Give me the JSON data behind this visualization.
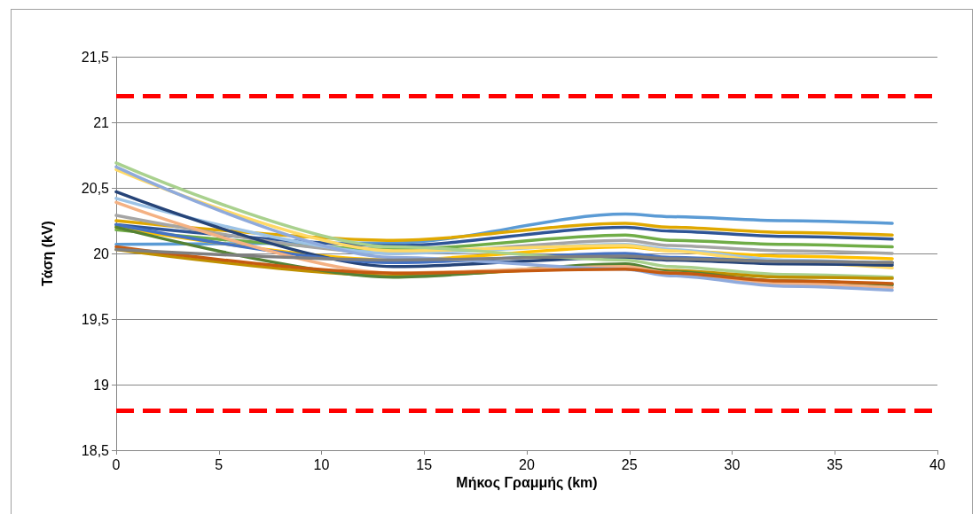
{
  "chart_data": {
    "type": "line",
    "xlabel": "Μήκος Γραμμής (km)",
    "ylabel": "Τάση (kV)",
    "xlim": [
      0,
      40
    ],
    "xticks": [
      0,
      5,
      10,
      15,
      20,
      25,
      30,
      35,
      40
    ],
    "ylim": [
      18.5,
      21.5
    ],
    "yticks": [
      {
        "value": 18.5,
        "label": "18,5"
      },
      {
        "value": 19,
        "label": "19"
      },
      {
        "value": 19.5,
        "label": "19,5"
      },
      {
        "value": 20,
        "label": "20"
      },
      {
        "value": 20.5,
        "label": "20,5"
      },
      {
        "value": 21,
        "label": "21"
      },
      {
        "value": 21.5,
        "label": "21,5"
      }
    ],
    "grid": "y",
    "marker": "none",
    "line_style": "solid",
    "x": [
      0,
      13.5,
      24.8,
      27,
      32.5,
      37.8
    ],
    "series": [
      {
        "color": "#5b9bd5",
        "values": [
          20.07,
          20.08,
          20.3,
          20.28,
          20.25,
          20.23
        ]
      },
      {
        "color": "#e0a800",
        "values": [
          20.25,
          20.1,
          20.23,
          20.2,
          20.16,
          20.14
        ]
      },
      {
        "color": "#2f5597",
        "values": [
          20.22,
          20.06,
          20.2,
          20.17,
          20.13,
          20.11
        ]
      },
      {
        "color": "#70ad47",
        "values": [
          20.18,
          20.03,
          20.14,
          20.1,
          20.07,
          20.05
        ]
      },
      {
        "color": "#a5a5a5",
        "values": [
          20.29,
          20.0,
          20.1,
          20.06,
          20.02,
          20.0
        ]
      },
      {
        "color": "#ffc000",
        "values": [
          20.2,
          19.95,
          20.05,
          20.02,
          19.98,
          19.96
        ]
      },
      {
        "color": "#9dc3e6",
        "values": [
          20.42,
          20.0,
          20.07,
          20.03,
          19.95,
          19.92
        ]
      },
      {
        "color": "#ffd966",
        "values": [
          20.64,
          20.02,
          20.06,
          20.02,
          19.93,
          19.89
        ]
      },
      {
        "color": "#264478",
        "values": [
          20.47,
          19.9,
          19.97,
          19.95,
          19.92,
          19.91
        ]
      },
      {
        "color": "#4472c4",
        "values": [
          20.22,
          19.93,
          20.0,
          19.97,
          19.94,
          19.93
        ]
      },
      {
        "color": "#a9d18e",
        "values": [
          20.69,
          20.05,
          19.95,
          19.9,
          19.84,
          19.82
        ]
      },
      {
        "color": "#bf9000",
        "values": [
          20.03,
          19.83,
          19.9,
          19.87,
          19.82,
          19.81
        ]
      },
      {
        "color": "#548235",
        "values": [
          20.2,
          19.82,
          19.92,
          19.86,
          19.79,
          19.76
        ]
      },
      {
        "color": "#f4b183",
        "values": [
          20.39,
          19.85,
          19.9,
          19.85,
          19.77,
          19.74
        ]
      },
      {
        "color": "#8faadc",
        "values": [
          20.66,
          19.97,
          19.88,
          19.83,
          19.75,
          19.72
        ]
      },
      {
        "color": "#c55a11",
        "values": [
          20.05,
          19.85,
          19.88,
          19.85,
          19.79,
          19.77
        ]
      },
      {
        "color": "#7f7f7f",
        "values": [
          20.03,
          19.95,
          19.98,
          19.96,
          19.94,
          19.93
        ]
      }
    ],
    "ref_lines": [
      {
        "axis": "y",
        "value": 21.2,
        "color": "#ff0000",
        "line_style": "dashed"
      },
      {
        "axis": "y",
        "value": 18.8,
        "color": "#ff0000",
        "line_style": "dashed"
      }
    ]
  }
}
